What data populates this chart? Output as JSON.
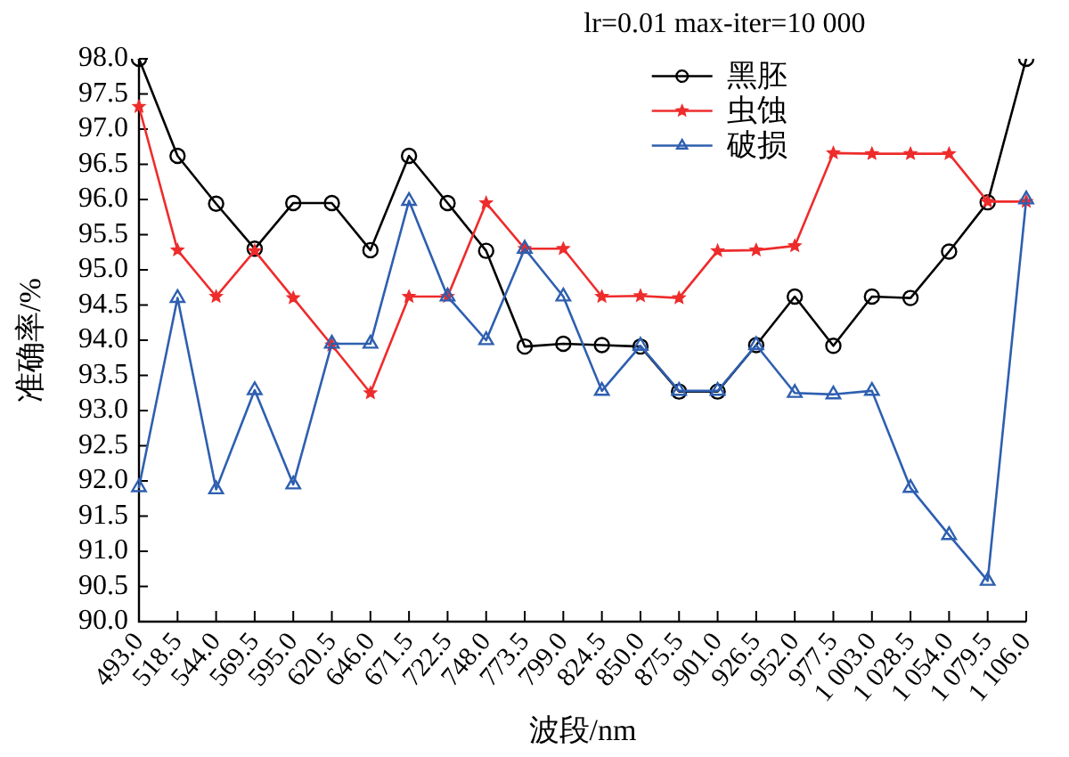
{
  "chart_data": {
    "type": "line",
    "title": "lr=0.01 max-iter=10 000",
    "xlabel": "波段/nm",
    "ylabel": "准确率/%",
    "categories": [
      "493.0",
      "518.5",
      "544.0",
      "569.5",
      "595.0",
      "620.5",
      "646.0",
      "671.5",
      "722.5",
      "748.0",
      "773.5",
      "799.0",
      "824.5",
      "850.0",
      "875.5",
      "901.0",
      "926.5",
      "952.0",
      "977.5",
      "1 003.0",
      "1 028.5",
      "1 054.0",
      "1 079.5",
      "1 106.0"
    ],
    "series": [
      {
        "name": "黑胚",
        "color": "#000000",
        "marker": "circle",
        "values": [
          98.0,
          96.62,
          95.94,
          95.3,
          95.95,
          95.95,
          95.28,
          96.62,
          95.95,
          95.27,
          93.91,
          93.95,
          93.93,
          93.91,
          93.27,
          93.27,
          93.93,
          94.62,
          93.92,
          94.62,
          94.6,
          95.26,
          95.96,
          98.0
        ]
      },
      {
        "name": "虫蚀",
        "color": "#ee2c2c",
        "marker": "star",
        "values": [
          97.32,
          95.28,
          94.62,
          95.27,
          94.6,
          93.93,
          93.25,
          94.62,
          94.62,
          95.95,
          95.3,
          95.3,
          94.62,
          94.63,
          94.6,
          95.27,
          95.28,
          95.34,
          96.66,
          96.65,
          96.65,
          96.65,
          95.97,
          95.97
        ]
      },
      {
        "name": "破损",
        "color": "#2e5fb0",
        "marker": "triangle",
        "values": [
          91.91,
          94.6,
          91.88,
          93.29,
          91.95,
          93.95,
          93.95,
          95.98,
          94.62,
          94.0,
          95.3,
          94.62,
          93.28,
          93.92,
          93.28,
          93.28,
          93.93,
          93.25,
          93.23,
          93.28,
          91.9,
          91.23,
          90.58,
          96.0
        ]
      }
    ],
    "ylim": [
      90,
      98
    ],
    "yticks": [
      {
        "value": 90,
        "label": "90.0"
      },
      {
        "value": 90.5,
        "label": "90.5"
      },
      {
        "value": 91,
        "label": "91.0"
      },
      {
        "value": 91.5,
        "label": "91.5"
      },
      {
        "value": 92,
        "label": "92.0"
      },
      {
        "value": 92.5,
        "label": "92.5"
      },
      {
        "value": 93,
        "label": "93.0"
      },
      {
        "value": 93.5,
        "label": "93.5"
      },
      {
        "value": 94,
        "label": "94.0"
      },
      {
        "value": 94.5,
        "label": "94.5"
      },
      {
        "value": 95,
        "label": "95.0"
      },
      {
        "value": 95.5,
        "label": "95.5"
      },
      {
        "value": 96,
        "label": "96.0"
      },
      {
        "value": 96.5,
        "label": "96.5"
      },
      {
        "value": 97,
        "label": "97.0"
      },
      {
        "value": 97.5,
        "label": "97.5"
      },
      {
        "value": 98,
        "label": "98.0"
      }
    ],
    "grid": false,
    "legend": "top right",
    "line_style": "solid"
  }
}
